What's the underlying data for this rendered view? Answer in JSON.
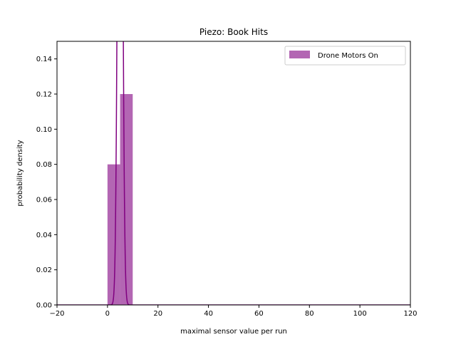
{
  "chart_data": {
    "type": "bar",
    "title": "Piezo: Book Hits",
    "xlabel": "maximal sensor value per run",
    "ylabel": "probability density",
    "xlim": [
      -20,
      120
    ],
    "ylim": [
      0,
      0.15
    ],
    "x_ticks": [
      -20,
      0,
      20,
      40,
      60,
      80,
      100,
      120
    ],
    "x_tick_labels": [
      "−20",
      "0",
      "20",
      "40",
      "60",
      "80",
      "100",
      "120"
    ],
    "y_ticks": [
      0.0,
      0.02,
      0.04,
      0.06,
      0.08,
      0.1,
      0.12,
      0.14
    ],
    "y_tick_labels": [
      "0.00",
      "0.02",
      "0.04",
      "0.06",
      "0.08",
      "0.10",
      "0.12",
      "0.14"
    ],
    "grid": false,
    "legend_placement": "upper right",
    "series": [
      {
        "name": "Drone Motors On",
        "kind": "histogram",
        "color": "#800080",
        "opacity": 0.6,
        "bins": [
          {
            "x0": 0,
            "x1": 5,
            "value": 0.08
          },
          {
            "x0": 5,
            "x1": 10,
            "value": 0.12
          }
        ]
      },
      {
        "kind": "normal-pdf",
        "color": "#800080",
        "mean": 5,
        "std": 0.85
      }
    ]
  }
}
